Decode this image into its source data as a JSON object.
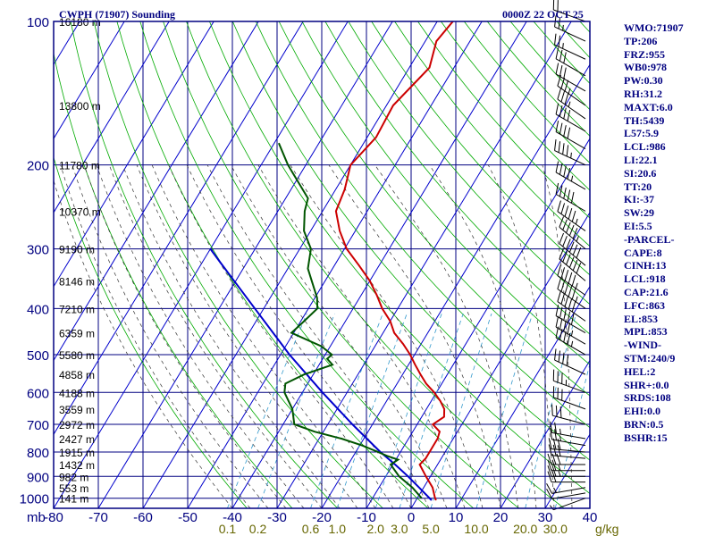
{
  "header": {
    "title": "CWPH (71907) Sounding",
    "datetime": "0000Z 22 OCT 25"
  },
  "indices": [
    "WMO:71907",
    "TP:206",
    "FRZ:955",
    "WB0:978",
    "PW:0.30",
    "RH:31.2",
    "MAXT:6.0",
    "TH:5439",
    "L57:5.9",
    "LCL:986",
    "LI:22.1",
    "SI:20.6",
    "TT:20",
    "KI:-37",
    "SW:29",
    "EI:5.5",
    "-PARCEL-",
    "CAPE:8",
    "CINH:13",
    "LCL:918",
    "CAP:21.6",
    "LFC:863",
    "EL:853",
    "MPL:853",
    "-WIND-",
    "STM:240/9",
    "HEL:2",
    "SHR+:0.0",
    "SRDS:108",
    "EHI:0.0",
    "BRN:0.5",
    "BSHR:15"
  ],
  "colors": {
    "frame": "#000080",
    "isotherm": "#0000cc",
    "dry_adiabat": "#00aa00",
    "moist_adiabat": "#333333",
    "mixing_ratio": "#3399cc",
    "temperature": "#cc0000",
    "dewpoint": "#005500",
    "parcel": "#0000cc",
    "wind": "#000000",
    "mixing_label": "#666600"
  },
  "chart_data": {
    "type": "skew-t",
    "xlabel_units": "mb",
    "pressure_levels": [
      100,
      200,
      300,
      400,
      500,
      600,
      700,
      800,
      900,
      1000
    ],
    "pressure_range": [
      100,
      1050
    ],
    "temperature_ticks": [
      -80,
      -70,
      -60,
      -50,
      -40,
      -30,
      -20,
      -10,
      0,
      10,
      20,
      30,
      40
    ],
    "temperature_tick_labels": [
      "-80",
      "-70",
      "-60",
      "-50",
      "-40",
      "-30",
      "-20",
      "-10",
      "0",
      "10",
      "20",
      "30",
      "40"
    ],
    "mixing_ratio_labels": [
      "0.1",
      "0.2",
      "0.6",
      "1.0",
      "2.0",
      "3.0",
      "5.0",
      "10.0",
      "20.0",
      "30.0"
    ],
    "mixing_ratio_unit": "g/kg",
    "height_labels": [
      {
        "p": 100,
        "label": "16180 m"
      },
      {
        "p": 150,
        "label": "13800 m"
      },
      {
        "p": 200,
        "label": "11780 m"
      },
      {
        "p": 250,
        "label": "10370 m"
      },
      {
        "p": 300,
        "label": "9190 m"
      },
      {
        "p": 350,
        "label": "8146 m"
      },
      {
        "p": 400,
        "label": "7210 m"
      },
      {
        "p": 450,
        "label": "6359 m"
      },
      {
        "p": 500,
        "label": "5580 m"
      },
      {
        "p": 550,
        "label": "4858 m"
      },
      {
        "p": 600,
        "label": "4188 m"
      },
      {
        "p": 650,
        "label": "3559 m"
      },
      {
        "p": 700,
        "label": "2972 m"
      },
      {
        "p": 750,
        "label": "2427 m"
      },
      {
        "p": 800,
        "label": "1915 m"
      },
      {
        "p": 850,
        "label": "1432 m"
      },
      {
        "p": 900,
        "label": "982 m"
      },
      {
        "p": 950,
        "label": "553 m"
      },
      {
        "p": 1000,
        "label": "141 m"
      }
    ],
    "temperature_profile": [
      [
        1010,
        4.5
      ],
      [
        1000,
        4.0
      ],
      [
        950,
        2.0
      ],
      [
        900,
        -1.0
      ],
      [
        850,
        -4.0
      ],
      [
        825,
        -3.5
      ],
      [
        800,
        -3.5
      ],
      [
        775,
        -3.5
      ],
      [
        750,
        -3.5
      ],
      [
        725,
        -4.0
      ],
      [
        700,
        -6.5
      ],
      [
        675,
        -5.0
      ],
      [
        650,
        -6.0
      ],
      [
        625,
        -8.0
      ],
      [
        600,
        -10.5
      ],
      [
        575,
        -13.5
      ],
      [
        550,
        -16.0
      ],
      [
        525,
        -18.5
      ],
      [
        500,
        -21.0
      ],
      [
        475,
        -24.0
      ],
      [
        450,
        -27.5
      ],
      [
        425,
        -30.0
      ],
      [
        400,
        -33.5
      ],
      [
        375,
        -36.5
      ],
      [
        350,
        -40.0
      ],
      [
        325,
        -44.5
      ],
      [
        300,
        -49.5
      ],
      [
        275,
        -53.5
      ],
      [
        250,
        -57.0
      ],
      [
        225,
        -58.0
      ],
      [
        200,
        -60.0
      ],
      [
        175,
        -58.0
      ],
      [
        150,
        -58.5
      ],
      [
        125,
        -55.5
      ],
      [
        110,
        -57.5
      ],
      [
        100,
        -56.5
      ]
    ],
    "dewpoint_profile": [
      [
        1000,
        1.0
      ],
      [
        950,
        -2.5
      ],
      [
        900,
        -7.0
      ],
      [
        850,
        -10.5
      ],
      [
        830,
        -9.5
      ],
      [
        815,
        -12.5
      ],
      [
        800,
        -15.0
      ],
      [
        775,
        -19.5
      ],
      [
        750,
        -25.0
      ],
      [
        725,
        -32.0
      ],
      [
        700,
        -37.5
      ],
      [
        650,
        -40.0
      ],
      [
        600,
        -44.0
      ],
      [
        575,
        -45.0
      ],
      [
        550,
        -42.0
      ],
      [
        525,
        -37.0
      ],
      [
        510,
        -39.0
      ],
      [
        500,
        -38.5
      ],
      [
        480,
        -42.0
      ],
      [
        450,
        -50.5
      ],
      [
        430,
        -49.5
      ],
      [
        400,
        -48.0
      ],
      [
        380,
        -49.5
      ],
      [
        350,
        -53.0
      ],
      [
        330,
        -55.5
      ],
      [
        300,
        -57.5
      ],
      [
        275,
        -61.5
      ],
      [
        250,
        -64.0
      ],
      [
        235,
        -65.0
      ],
      [
        200,
        -74.0
      ],
      [
        180,
        -79.0
      ]
    ],
    "parcel_path": [
      [
        1010,
        3.5
      ],
      [
        950,
        -1.0
      ],
      [
        900,
        -5.0
      ],
      [
        850,
        -9.5
      ],
      [
        800,
        -14.5
      ],
      [
        700,
        -24.5
      ],
      [
        600,
        -35.5
      ],
      [
        500,
        -48.0
      ],
      [
        400,
        -62.0
      ],
      [
        320,
        -76.0
      ],
      [
        300,
        -80.0
      ]
    ],
    "wind_barbs": [
      {
        "p": 1000,
        "dir": 250,
        "spd": 5
      },
      {
        "p": 975,
        "dir": 260,
        "spd": 10
      },
      {
        "p": 950,
        "dir": 260,
        "spd": 15
      },
      {
        "p": 925,
        "dir": 270,
        "spd": 20
      },
      {
        "p": 900,
        "dir": 270,
        "spd": 25
      },
      {
        "p": 875,
        "dir": 270,
        "spd": 25
      },
      {
        "p": 850,
        "dir": 270,
        "spd": 30
      },
      {
        "p": 825,
        "dir": 275,
        "spd": 30
      },
      {
        "p": 800,
        "dir": 275,
        "spd": 30
      },
      {
        "p": 775,
        "dir": 280,
        "spd": 25
      },
      {
        "p": 750,
        "dir": 280,
        "spd": 25
      },
      {
        "p": 700,
        "dir": 285,
        "spd": 30
      },
      {
        "p": 650,
        "dir": 290,
        "spd": 30
      },
      {
        "p": 600,
        "dir": 290,
        "spd": 35
      },
      {
        "p": 550,
        "dir": 295,
        "spd": 40
      },
      {
        "p": 500,
        "dir": 300,
        "spd": 45
      },
      {
        "p": 475,
        "dir": 300,
        "spd": 45
      },
      {
        "p": 450,
        "dir": 300,
        "spd": 50
      },
      {
        "p": 425,
        "dir": 305,
        "spd": 50
      },
      {
        "p": 400,
        "dir": 305,
        "spd": 55
      },
      {
        "p": 375,
        "dir": 305,
        "spd": 55
      },
      {
        "p": 350,
        "dir": 310,
        "spd": 60
      },
      {
        "p": 325,
        "dir": 310,
        "spd": 60
      },
      {
        "p": 300,
        "dir": 310,
        "spd": 55
      },
      {
        "p": 275,
        "dir": 305,
        "spd": 55
      },
      {
        "p": 250,
        "dir": 300,
        "spd": 50
      },
      {
        "p": 225,
        "dir": 300,
        "spd": 45
      },
      {
        "p": 200,
        "dir": 295,
        "spd": 45
      },
      {
        "p": 185,
        "dir": 300,
        "spd": 40
      },
      {
        "p": 170,
        "dir": 300,
        "spd": 40
      },
      {
        "p": 160,
        "dir": 305,
        "spd": 35
      },
      {
        "p": 150,
        "dir": 305,
        "spd": 35
      },
      {
        "p": 140,
        "dir": 300,
        "spd": 30
      },
      {
        "p": 130,
        "dir": 300,
        "spd": 30
      },
      {
        "p": 120,
        "dir": 295,
        "spd": 25
      },
      {
        "p": 110,
        "dir": 295,
        "spd": 25
      },
      {
        "p": 100,
        "dir": 290,
        "spd": 20
      }
    ]
  }
}
